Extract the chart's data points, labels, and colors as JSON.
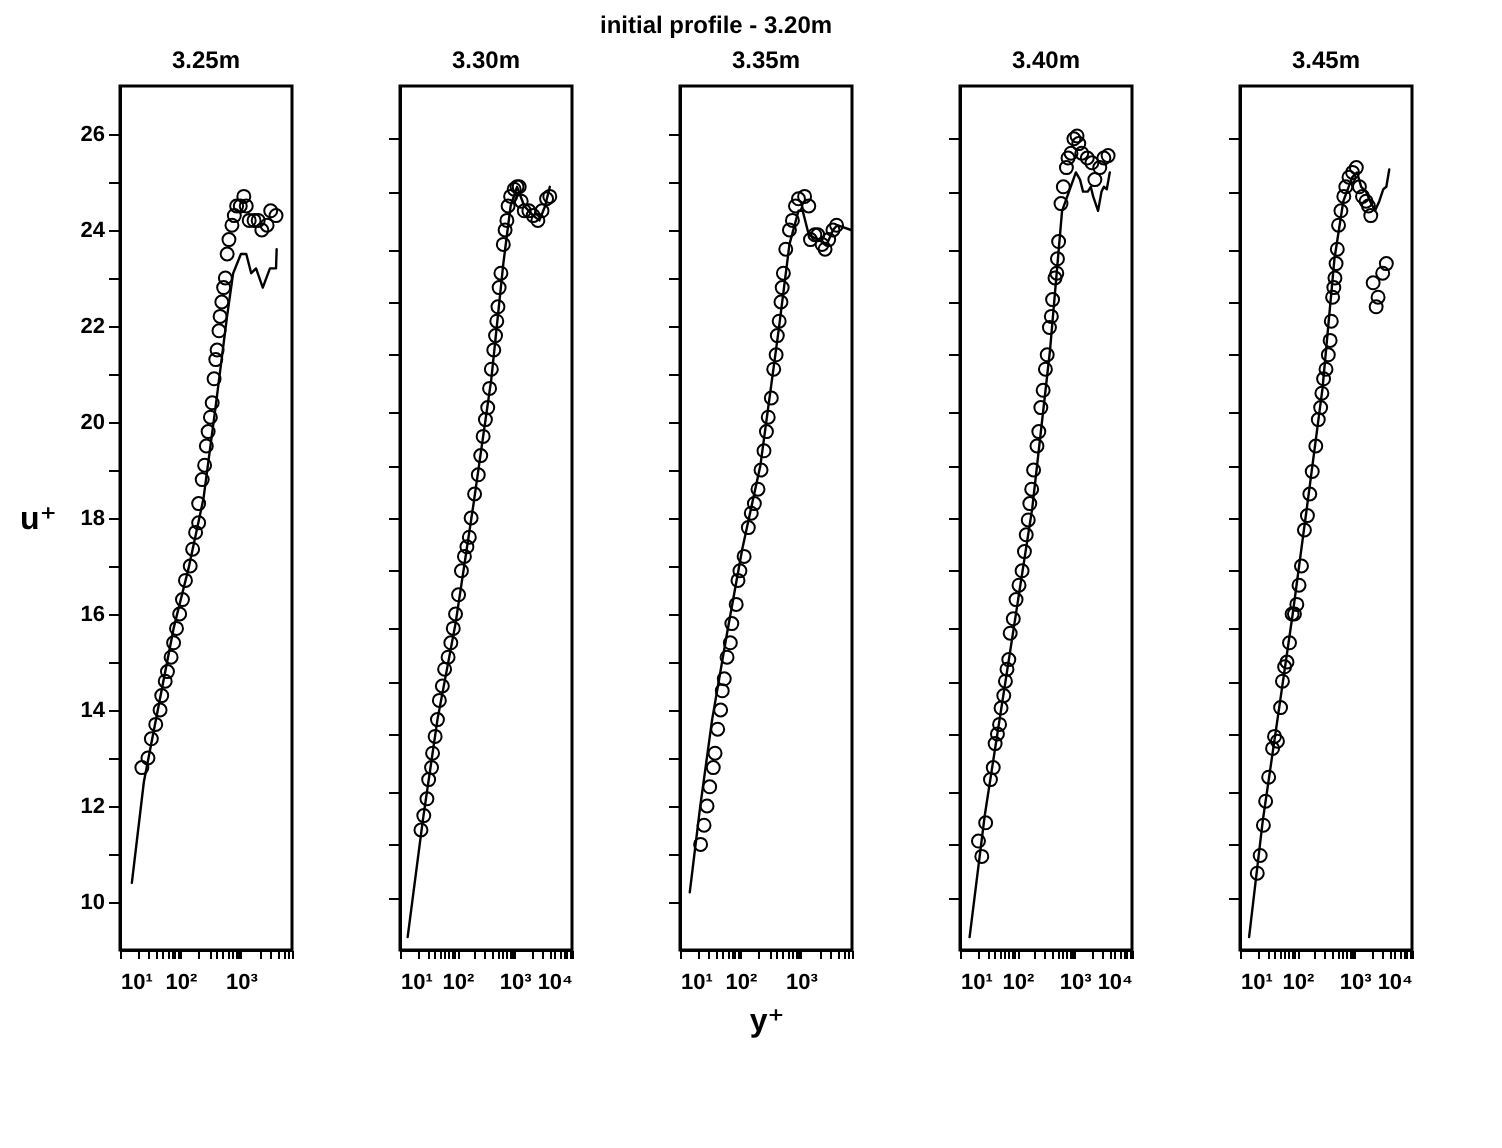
{
  "chart_data": [
    {
      "type": "scatter",
      "title": "3.25m",
      "ylabel": "u⁺",
      "annotations": [
        "initial profile - 3.20m"
      ],
      "log": "x",
      "grid": false,
      "xlim": [
        10,
        7000
      ],
      "ylim": [
        9,
        27
      ],
      "xticks": [
        {
          "value": 10,
          "label": "10¹"
        },
        {
          "value": 20,
          "label": null
        },
        {
          "value": 30,
          "label": null
        },
        {
          "value": 40,
          "label": null
        },
        {
          "value": 50,
          "label": null
        },
        {
          "value": 60,
          "label": null
        },
        {
          "value": 70,
          "label": null
        },
        {
          "value": 80,
          "label": null
        },
        {
          "value": 90,
          "label": null
        },
        {
          "value": 100,
          "label": "10²"
        },
        {
          "value": 200,
          "label": null
        },
        {
          "value": 300,
          "label": null
        },
        {
          "value": 400,
          "label": null
        },
        {
          "value": 500,
          "label": null
        },
        {
          "value": 600,
          "label": null
        },
        {
          "value": 700,
          "label": null
        },
        {
          "value": 800,
          "label": null
        },
        {
          "value": 900,
          "label": null
        },
        {
          "value": 1000,
          "label": "10³"
        },
        {
          "value": 2000,
          "label": null
        },
        {
          "value": 3000,
          "label": null
        },
        {
          "value": 4000,
          "label": null
        },
        {
          "value": 5000,
          "label": null
        },
        {
          "value": 6000,
          "label": null
        },
        {
          "value": 7000,
          "label": null
        }
      ],
      "yticks": [
        10,
        {
          "value": 11,
          "label": null
        },
        12,
        {
          "value": 13,
          "label": null
        },
        14,
        {
          "value": 15,
          "label": null
        },
        16,
        {
          "value": 17,
          "label": null
        },
        18,
        {
          "value": 19,
          "label": null
        },
        20,
        {
          "value": 21,
          "label": null
        },
        22,
        {
          "value": 23,
          "label": null
        },
        24,
        {
          "value": 25,
          "label": null
        },
        26
      ],
      "series": [
        {
          "type": "line",
          "color": "#000000",
          "x": [
            15.7,
            24.8,
            43.7,
            77,
            136,
            240,
            380,
            590,
            745,
            1000,
            1226,
            1480,
            1780,
            2300,
            3020,
            3810,
            3900
          ],
          "values": [
            10.4,
            12.5,
            14.1,
            15.7,
            16.95,
            18.4,
            20.3,
            22.2,
            23.1,
            23.5,
            23.5,
            23.1,
            23.2,
            22.8,
            23.2,
            23.2,
            23.6
          ]
        },
        {
          "type": "scatter",
          "marker": "circle",
          "color": "#000000",
          "x": [
            23,
            29,
            33,
            39,
            46,
            49,
            56,
            61,
            70,
            77,
            86,
            97,
            108,
            121,
            145,
            159,
            178,
            200,
            200,
            229,
            251,
            268,
            287,
            313,
            335,
            360,
            384,
            404,
            434,
            453,
            483,
            518,
            553,
            592,
            634,
            711,
            778,
            850,
            976,
            1118,
            1226,
            1372,
            1650,
            1930,
            2220,
            2710,
            3110,
            3810
          ],
          "values": [
            12.8,
            13.0,
            13.4,
            13.7,
            14.0,
            14.3,
            14.6,
            14.8,
            15.1,
            15.4,
            15.7,
            16.0,
            16.3,
            16.7,
            17.0,
            17.35,
            17.7,
            17.9,
            18.3,
            18.8,
            19.1,
            19.5,
            19.8,
            20.1,
            20.4,
            20.9,
            21.3,
            21.5,
            21.9,
            22.2,
            22.5,
            22.8,
            23.0,
            23.5,
            23.8,
            24.1,
            24.3,
            24.5,
            24.5,
            24.7,
            24.5,
            24.2,
            24.2,
            24.2,
            24.0,
            24.1,
            24.4,
            24.3
          ]
        }
      ]
    },
    {
      "type": "scatter",
      "title": "3.30m",
      "log": "x",
      "grid": false,
      "tick_labels": "x",
      "xlim": [
        10,
        10000
      ],
      "ylim": [
        9,
        27
      ],
      "xticks": [
        {
          "value": 10,
          "label": "10¹"
        },
        {
          "value": 20,
          "label": null
        },
        {
          "value": 30,
          "label": null
        },
        {
          "value": 40,
          "label": null
        },
        {
          "value": 50,
          "label": null
        },
        {
          "value": 60,
          "label": null
        },
        {
          "value": 70,
          "label": null
        },
        {
          "value": 80,
          "label": null
        },
        {
          "value": 90,
          "label": null
        },
        {
          "value": 100,
          "label": "10²"
        },
        {
          "value": 200,
          "label": null
        },
        {
          "value": 300,
          "label": null
        },
        {
          "value": 400,
          "label": null
        },
        {
          "value": 500,
          "label": null
        },
        {
          "value": 600,
          "label": null
        },
        {
          "value": 700,
          "label": null
        },
        {
          "value": 800,
          "label": null
        },
        {
          "value": 900,
          "label": null
        },
        {
          "value": 1000,
          "label": "10³"
        },
        {
          "value": 2000,
          "label": null
        },
        {
          "value": 3000,
          "label": null
        },
        {
          "value": 4000,
          "label": null
        },
        {
          "value": 5000,
          "label": null
        },
        {
          "value": 6000,
          "label": null
        },
        {
          "value": 7000,
          "label": null
        },
        {
          "value": 8000,
          "label": null
        },
        {
          "value": 9000,
          "label": null
        },
        {
          "value": 10000,
          "label": "10⁴"
        }
      ],
      "yticks": [
        {
          "value": 10.1,
          "label": null
        },
        {
          "value": 11.2,
          "label": null
        },
        {
          "value": 12.3,
          "label": null
        },
        {
          "value": 13.5,
          "label": null
        },
        {
          "value": 14.6,
          "label": null
        },
        {
          "value": 15.7,
          "label": null
        },
        {
          "value": 16.9,
          "label": null
        },
        {
          "value": 18.0,
          "label": null
        },
        {
          "value": 19.1,
          "label": null
        },
        {
          "value": 20.2,
          "label": null
        },
        {
          "value": 21.4,
          "label": null
        },
        {
          "value": 22.5,
          "label": null
        },
        {
          "value": 23.6,
          "label": null
        },
        {
          "value": 24.8,
          "label": null
        },
        {
          "value": 25.9,
          "label": null
        }
      ],
      "series": [
        {
          "type": "line",
          "color": "#000000",
          "x": [
            13.6,
            25,
            45,
            93,
            192,
            392,
            634,
            850,
            1100,
            1470,
            2100,
            2700,
            3400,
            4100
          ],
          "values": [
            9.27,
            11.7,
            13.8,
            15.8,
            18.3,
            20.9,
            23.3,
            24.5,
            24.9,
            24.5,
            24.3,
            24.2,
            24.5,
            24.9
          ]
        },
        {
          "type": "scatter",
          "marker": "circle",
          "color": "#000000",
          "x": [
            23.2,
            26,
            29.5,
            31.6,
            35.5,
            37,
            41,
            45,
            48.6,
            54.8,
            60,
            69,
            77,
            85,
            93,
            105,
            118,
            133,
            147,
            162,
            174,
            200,
            232,
            256,
            282,
            309,
            339,
            365,
            392,
            432,
            464,
            488,
            511,
            536,
            576,
            634,
            681,
            732,
            768,
            850,
            980,
            1100,
            1200,
            1300,
            1470,
            1770,
            2100,
            2540,
            3000,
            3600,
            4100
          ],
          "values": [
            11.5,
            11.8,
            12.15,
            12.55,
            12.8,
            13.1,
            13.45,
            13.8,
            14.2,
            14.5,
            14.85,
            15.1,
            15.4,
            15.7,
            16.0,
            16.4,
            16.9,
            17.2,
            17.4,
            17.6,
            18.0,
            18.5,
            18.9,
            19.3,
            19.7,
            20.05,
            20.3,
            20.7,
            21.1,
            21.5,
            21.8,
            22.1,
            22.4,
            22.8,
            23.1,
            23.7,
            24.0,
            24.2,
            24.5,
            24.7,
            24.85,
            24.9,
            24.9,
            24.6,
            24.4,
            24.4,
            24.3,
            24.2,
            24.4,
            24.65,
            24.7
          ]
        }
      ]
    },
    {
      "type": "scatter",
      "title": "3.35m",
      "xlabel": "y⁺",
      "log": "x",
      "grid": false,
      "tick_labels": "x",
      "xlim": [
        10,
        7000
      ],
      "ylim": [
        9,
        27
      ],
      "xticks": [
        {
          "value": 10,
          "label": "10¹"
        },
        {
          "value": 20,
          "label": null
        },
        {
          "value": 30,
          "label": null
        },
        {
          "value": 40,
          "label": null
        },
        {
          "value": 50,
          "label": null
        },
        {
          "value": 60,
          "label": null
        },
        {
          "value": 70,
          "label": null
        },
        {
          "value": 80,
          "label": null
        },
        {
          "value": 90,
          "label": null
        },
        {
          "value": 100,
          "label": "10²"
        },
        {
          "value": 200,
          "label": null
        },
        {
          "value": 300,
          "label": null
        },
        {
          "value": 400,
          "label": null
        },
        {
          "value": 500,
          "label": null
        },
        {
          "value": 600,
          "label": null
        },
        {
          "value": 700,
          "label": null
        },
        {
          "value": 800,
          "label": null
        },
        {
          "value": 900,
          "label": null
        },
        {
          "value": 1000,
          "label": "10³"
        },
        {
          "value": 2000,
          "label": null
        },
        {
          "value": 3000,
          "label": null
        },
        {
          "value": 4000,
          "label": null
        },
        {
          "value": 5000,
          "label": null
        },
        {
          "value": 6000,
          "label": null
        },
        {
          "value": 7000,
          "label": null
        }
      ],
      "yticks": [
        {
          "value": 10,
          "label": null
        },
        {
          "value": 11,
          "label": null
        },
        {
          "value": 12,
          "label": null
        },
        {
          "value": 13,
          "label": null
        },
        {
          "value": 14,
          "label": null
        },
        {
          "value": 15,
          "label": null
        },
        {
          "value": 16,
          "label": null
        },
        {
          "value": 17,
          "label": null
        },
        {
          "value": 18,
          "label": null
        },
        {
          "value": 19,
          "label": null
        },
        {
          "value": 20,
          "label": null
        },
        {
          "value": 21,
          "label": null
        },
        {
          "value": 22,
          "label": null
        },
        {
          "value": 23,
          "label": null
        },
        {
          "value": 24,
          "label": null
        },
        {
          "value": 25,
          "label": null
        },
        {
          "value": 26,
          "label": null
        }
      ],
      "series": [
        {
          "type": "line",
          "color": "#000000",
          "x": [
            14.5,
            21.4,
            34,
            60,
            107,
            214,
            427,
            646,
            912,
            1070,
            1350,
            1900,
            2690,
            3390,
            3980,
            6760
          ],
          "values": [
            10.2,
            11.95,
            13.8,
            15.6,
            17.35,
            19.1,
            21.9,
            23.7,
            24.4,
            24.4,
            23.9,
            23.8,
            23.7,
            24.0,
            24.1,
            24.0
          ]
        },
        {
          "type": "scatter",
          "marker": "circle",
          "color": "#000000",
          "x": [
            21.9,
            25,
            28,
            31,
            35.5,
            38,
            42,
            47,
            50,
            54,
            60,
            68,
            72,
            85,
            91,
            98,
            115,
            135,
            151,
            170,
            195,
            219,
            245,
            269,
            288,
            324,
            355,
            389,
            407,
            437,
            468,
            490,
            513,
            562,
            646,
            724,
            813,
            912,
            1150,
            1350,
            1440,
            1700,
            1900,
            2240,
            2510,
            2880,
            3390,
            3890
          ],
          "values": [
            11.2,
            11.6,
            12.0,
            12.4,
            12.8,
            13.1,
            13.6,
            14.0,
            14.4,
            14.65,
            15.1,
            15.4,
            15.8,
            16.2,
            16.7,
            16.9,
            17.2,
            17.8,
            18.1,
            18.3,
            18.6,
            19.0,
            19.4,
            19.8,
            20.1,
            20.5,
            21.1,
            21.4,
            21.8,
            22.1,
            22.5,
            22.8,
            23.1,
            23.6,
            24.0,
            24.2,
            24.5,
            24.65,
            24.7,
            24.5,
            23.8,
            23.9,
            23.9,
            23.7,
            23.6,
            23.8,
            24.0,
            24.1
          ]
        }
      ]
    },
    {
      "type": "scatter",
      "title": "3.40m",
      "log": "x",
      "grid": false,
      "tick_labels": "x",
      "xlim": [
        10,
        10000
      ],
      "ylim": [
        9,
        27
      ],
      "xticks": [
        {
          "value": 10,
          "label": "10¹"
        },
        {
          "value": 20,
          "label": null
        },
        {
          "value": 30,
          "label": null
        },
        {
          "value": 40,
          "label": null
        },
        {
          "value": 50,
          "label": null
        },
        {
          "value": 60,
          "label": null
        },
        {
          "value": 70,
          "label": null
        },
        {
          "value": 80,
          "label": null
        },
        {
          "value": 90,
          "label": null
        },
        {
          "value": 100,
          "label": "10²"
        },
        {
          "value": 200,
          "label": null
        },
        {
          "value": 300,
          "label": null
        },
        {
          "value": 400,
          "label": null
        },
        {
          "value": 500,
          "label": null
        },
        {
          "value": 600,
          "label": null
        },
        {
          "value": 700,
          "label": null
        },
        {
          "value": 800,
          "label": null
        },
        {
          "value": 900,
          "label": null
        },
        {
          "value": 1000,
          "label": "10³"
        },
        {
          "value": 2000,
          "label": null
        },
        {
          "value": 3000,
          "label": null
        },
        {
          "value": 4000,
          "label": null
        },
        {
          "value": 5000,
          "label": null
        },
        {
          "value": 6000,
          "label": null
        },
        {
          "value": 7000,
          "label": null
        },
        {
          "value": 8000,
          "label": null
        },
        {
          "value": 9000,
          "label": null
        },
        {
          "value": 10000,
          "label": "10⁴"
        }
      ],
      "yticks": [
        {
          "value": 10.1,
          "label": null
        },
        {
          "value": 11.2,
          "label": null
        },
        {
          "value": 12.3,
          "label": null
        },
        {
          "value": 13.5,
          "label": null
        },
        {
          "value": 14.6,
          "label": null
        },
        {
          "value": 15.7,
          "label": null
        },
        {
          "value": 16.9,
          "label": null
        },
        {
          "value": 18.0,
          "label": null
        },
        {
          "value": 19.1,
          "label": null
        },
        {
          "value": 20.2,
          "label": null
        },
        {
          "value": 21.4,
          "label": null
        },
        {
          "value": 22.5,
          "label": null
        },
        {
          "value": 23.6,
          "label": null
        },
        {
          "value": 24.8,
          "label": null
        },
        {
          "value": 25.9,
          "label": null
        }
      ],
      "series": [
        {
          "type": "line",
          "color": "#000000",
          "x": [
            14.7,
            27,
            49,
            89,
            182,
            372,
            603,
            826,
            1050,
            1240,
            1400,
            1690,
            1910,
            2100,
            2560,
            2940,
            3230,
            3630,
            4100
          ],
          "values": [
            9.27,
            11.8,
            13.8,
            15.8,
            18.2,
            21.5,
            24.4,
            24.85,
            25.2,
            25.05,
            24.8,
            24.8,
            24.9,
            24.7,
            24.4,
            24.8,
            24.9,
            24.85,
            25.2
          ]
        },
        {
          "type": "scatter",
          "marker": "circle",
          "color": "#000000",
          "x": [
            21,
            24,
            28,
            34,
            38,
            41,
            45,
            49,
            52,
            58,
            62,
            66,
            71,
            75,
            85,
            95,
            107,
            121,
            133,
            143,
            155,
            165,
            178,
            192,
            220,
            237,
            257,
            282,
            309,
            332,
            363,
            392,
            412,
            454,
            488,
            501,
            525,
            578,
            634,
            718,
            766,
            864,
            970,
            1100,
            1180,
            1330,
            1660,
            2000,
            2250,
            2740,
            3230,
            3830
          ],
          "values": [
            11.27,
            10.95,
            11.65,
            12.55,
            12.8,
            13.3,
            13.5,
            13.7,
            14.04,
            14.3,
            14.6,
            14.85,
            15.05,
            15.6,
            15.9,
            16.3,
            16.6,
            16.9,
            17.3,
            17.65,
            17.96,
            18.3,
            18.6,
            19.0,
            19.5,
            19.8,
            20.3,
            20.66,
            21.1,
            21.4,
            21.97,
            22.2,
            22.55,
            23.0,
            23.1,
            23.4,
            23.76,
            24.55,
            24.9,
            25.3,
            25.5,
            25.6,
            25.9,
            25.96,
            25.8,
            25.6,
            25.5,
            25.4,
            25.05,
            25.3,
            25.5,
            25.55
          ]
        }
      ]
    },
    {
      "type": "scatter",
      "title": "3.45m",
      "log": "x",
      "grid": false,
      "tick_labels": "x",
      "xlim": [
        10,
        10000
      ],
      "ylim": [
        9,
        27
      ],
      "xticks": [
        {
          "value": 10,
          "label": "10¹"
        },
        {
          "value": 20,
          "label": null
        },
        {
          "value": 30,
          "label": null
        },
        {
          "value": 40,
          "label": null
        },
        {
          "value": 50,
          "label": null
        },
        {
          "value": 60,
          "label": null
        },
        {
          "value": 70,
          "label": null
        },
        {
          "value": 80,
          "label": null
        },
        {
          "value": 90,
          "label": null
        },
        {
          "value": 100,
          "label": "10²"
        },
        {
          "value": 200,
          "label": null
        },
        {
          "value": 300,
          "label": null
        },
        {
          "value": 400,
          "label": null
        },
        {
          "value": 500,
          "label": null
        },
        {
          "value": 600,
          "label": null
        },
        {
          "value": 700,
          "label": null
        },
        {
          "value": 800,
          "label": null
        },
        {
          "value": 900,
          "label": null
        },
        {
          "value": 1000,
          "label": "10³"
        },
        {
          "value": 2000,
          "label": null
        },
        {
          "value": 3000,
          "label": null
        },
        {
          "value": 4000,
          "label": null
        },
        {
          "value": 5000,
          "label": null
        },
        {
          "value": 6000,
          "label": null
        },
        {
          "value": 7000,
          "label": null
        },
        {
          "value": 8000,
          "label": null
        },
        {
          "value": 9000,
          "label": null
        },
        {
          "value": 10000,
          "label": "10⁴"
        }
      ],
      "yticks": [
        {
          "value": 10.1,
          "label": null
        },
        {
          "value": 11.2,
          "label": null
        },
        {
          "value": 12.3,
          "label": null
        },
        {
          "value": 13.5,
          "label": null
        },
        {
          "value": 14.6,
          "label": null
        },
        {
          "value": 15.7,
          "label": null
        },
        {
          "value": 16.9,
          "label": null
        },
        {
          "value": 18.0,
          "label": null
        },
        {
          "value": 19.1,
          "label": null
        },
        {
          "value": 20.2,
          "label": null
        },
        {
          "value": 21.4,
          "label": null
        },
        {
          "value": 22.5,
          "label": null
        },
        {
          "value": 23.6,
          "label": null
        },
        {
          "value": 24.8,
          "label": null
        },
        {
          "value": 25.9,
          "label": null
        }
      ],
      "series": [
        {
          "type": "line",
          "color": "#000000",
          "x": [
            14.4,
            25,
            45,
            83,
            150,
            275,
            444,
            634,
            910,
            1100,
            1300,
            1580,
            1860,
            2260,
            2690,
            3160,
            3570,
            4010
          ],
          "values": [
            9.27,
            11.7,
            13.8,
            16.0,
            18.3,
            20.7,
            23.4,
            24.6,
            25.1,
            25.2,
            24.9,
            24.8,
            24.6,
            24.4,
            24.6,
            24.85,
            24.9,
            25.26
          ]
        },
        {
          "type": "scatter",
          "marker": "circle",
          "color": "#000000",
          "x": [
            20,
            22.5,
            25.6,
            28,
            31.6,
            37,
            40,
            45,
            51,
            55,
            60,
            66,
            73,
            81,
            89,
            98,
            107,
            118,
            133,
            150,
            165,
            182,
            210,
            232,
            255,
            268,
            287,
            316,
            347,
            373,
            391,
            412,
            433,
            453,
            474,
            498,
            523,
            576,
            647,
            700,
            797,
            920,
            1070,
            1210,
            1370,
            1580,
            1740,
            1910,
            2100,
            2370,
            2560,
            3080,
            3570
          ],
          "values": [
            10.6,
            10.97,
            11.6,
            12.1,
            12.6,
            13.2,
            13.45,
            13.35,
            14.05,
            14.6,
            14.9,
            15.0,
            15.4,
            16.0,
            16.0,
            16.2,
            16.6,
            17.0,
            17.75,
            18.05,
            18.5,
            18.97,
            19.5,
            20.05,
            20.3,
            20.6,
            20.9,
            21.1,
            21.4,
            21.7,
            22.1,
            22.6,
            22.8,
            23.0,
            23.3,
            23.6,
            24.1,
            24.4,
            24.7,
            24.9,
            25.1,
            25.2,
            25.3,
            24.9,
            24.7,
            24.6,
            24.5,
            24.3,
            22.9,
            22.4,
            22.6,
            23.1,
            23.3
          ]
        }
      ]
    }
  ]
}
